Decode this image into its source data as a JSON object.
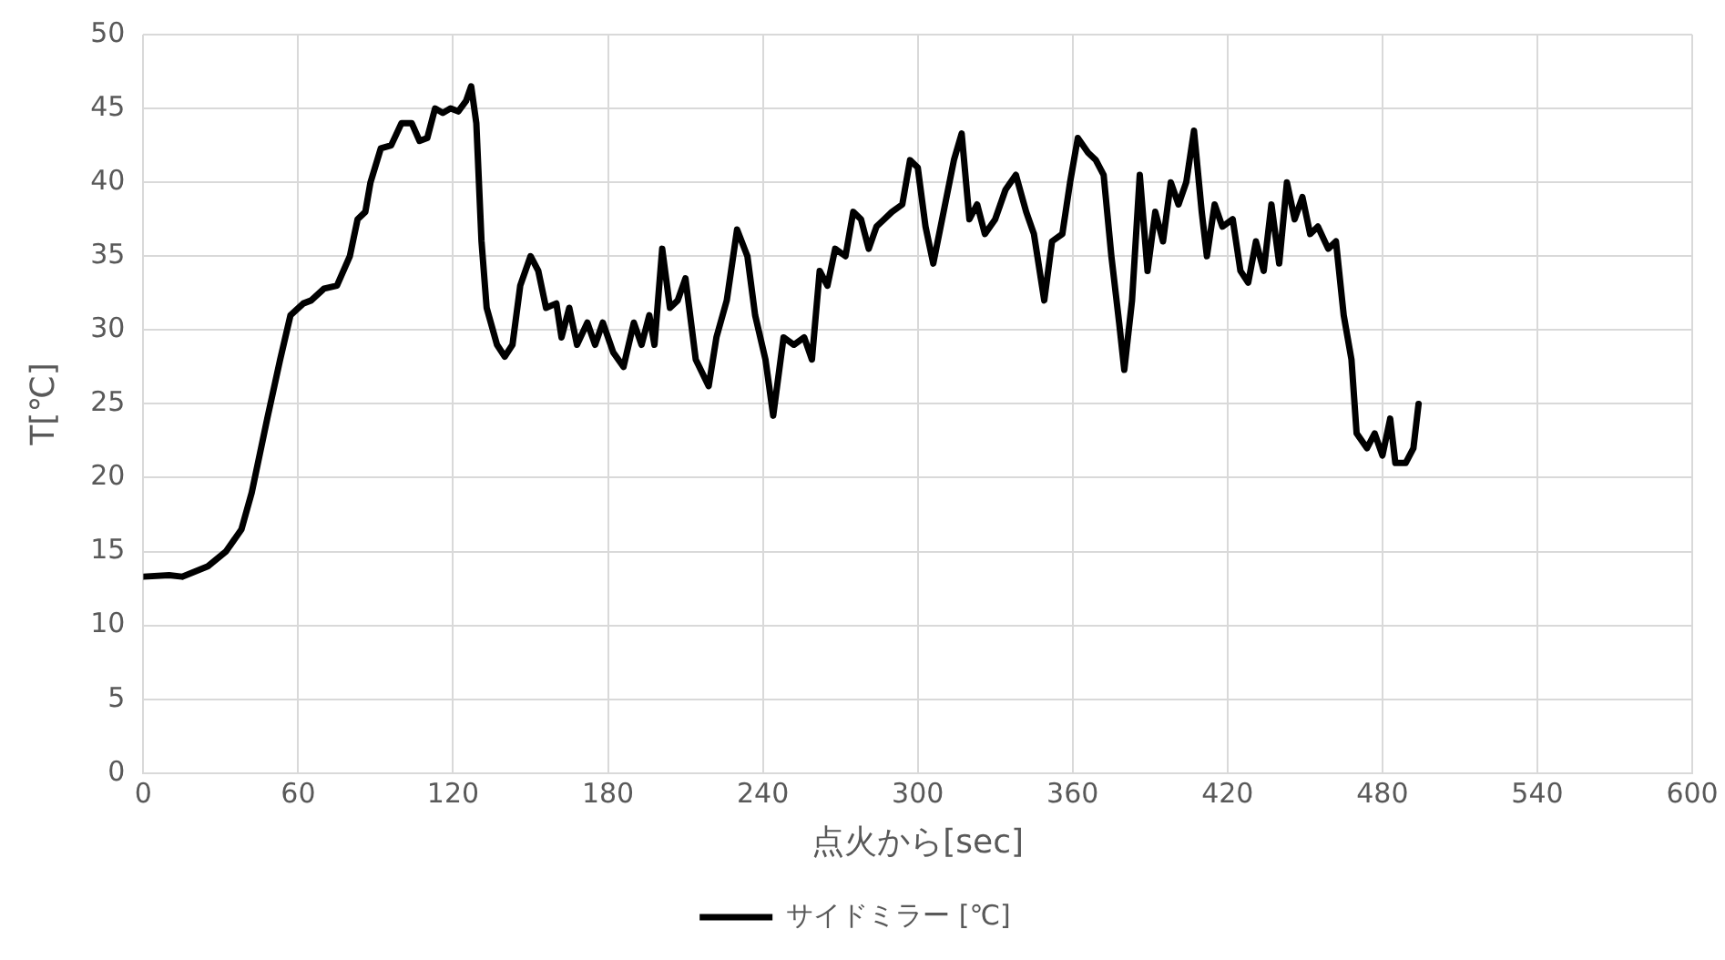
{
  "chart_data": {
    "type": "line",
    "xlabel": "点火から[sec]",
    "ylabel": "T[℃]",
    "xlim": [
      0,
      600
    ],
    "xticks": [
      0,
      60,
      120,
      180,
      240,
      300,
      360,
      420,
      480,
      540,
      600
    ],
    "ylim": [
      0,
      50
    ],
    "yticks": [
      0,
      5,
      10,
      15,
      20,
      25,
      30,
      35,
      40,
      45,
      50
    ],
    "grid": true,
    "legend": "bottom",
    "marker": "none",
    "line_style": "solid",
    "series": [
      {
        "name": "サイドミラー [℃]",
        "color": "#000000",
        "x": [
          0,
          10,
          15,
          25,
          32,
          38,
          42,
          48,
          53,
          57,
          62,
          65,
          70,
          75,
          80,
          83,
          86,
          88,
          92,
          96,
          100,
          104,
          107,
          110,
          113,
          116,
          119,
          122,
          125,
          127,
          129,
          131,
          133,
          137,
          140,
          143,
          146,
          150,
          153,
          156,
          160,
          162,
          165,
          168,
          172,
          175,
          178,
          182,
          186,
          190,
          193,
          196,
          198,
          201,
          204,
          207,
          210,
          214,
          219,
          222,
          226,
          230,
          234,
          237,
          241,
          244,
          248,
          252,
          256,
          259,
          262,
          265,
          268,
          272,
          275,
          278,
          281,
          284,
          287,
          290,
          294,
          297,
          300,
          303,
          306,
          310,
          314,
          317,
          320,
          323,
          326,
          330,
          334,
          338,
          342,
          345,
          349,
          352,
          356,
          359,
          362,
          366,
          369,
          372,
          375,
          378,
          380,
          383,
          386,
          389,
          392,
          395,
          398,
          401,
          404,
          407,
          410,
          412,
          415,
          418,
          422,
          425,
          428,
          431,
          434,
          437,
          440,
          443,
          446,
          449,
          452,
          455,
          459,
          462,
          465,
          468,
          470,
          474,
          477,
          480,
          483,
          485,
          489,
          492,
          494
        ],
        "values": [
          13.3,
          13.4,
          13.3,
          14,
          15,
          16.5,
          19,
          24,
          28,
          31,
          31.8,
          32,
          32.8,
          33,
          35,
          37.5,
          38,
          40,
          42.3,
          42.5,
          44,
          44,
          42.8,
          43,
          45,
          44.7,
          45,
          44.8,
          45.5,
          46.5,
          44,
          36,
          31.5,
          29,
          28.2,
          29,
          33,
          35,
          34,
          31.5,
          31.8,
          29.5,
          31.5,
          29,
          30.5,
          29,
          30.5,
          28.5,
          27.5,
          30.5,
          29,
          31,
          29,
          35.5,
          31.5,
          32,
          33.5,
          28,
          26.2,
          29.5,
          32,
          36.8,
          35,
          31,
          28,
          24.2,
          29.5,
          29,
          29.5,
          28,
          34,
          33,
          35.5,
          35,
          38,
          37.5,
          35.5,
          37,
          37.5,
          38,
          38.5,
          41.5,
          41,
          37,
          34.5,
          38,
          41.5,
          43.3,
          37.5,
          38.5,
          36.5,
          37.5,
          39.5,
          40.5,
          38,
          36.5,
          32,
          36,
          36.5,
          40,
          43,
          42,
          41.5,
          40.5,
          35,
          30.5,
          27.3,
          32,
          40.5,
          34,
          38,
          36,
          40,
          38.5,
          40,
          43.5,
          38,
          35,
          38.5,
          37,
          37.5,
          34,
          33.2,
          36,
          34,
          38.5,
          34.5,
          40,
          37.5,
          39,
          36.5,
          37,
          35.5,
          36,
          31,
          28,
          23,
          22,
          23,
          21.5,
          24,
          21,
          21,
          22,
          25
        ]
      }
    ]
  }
}
